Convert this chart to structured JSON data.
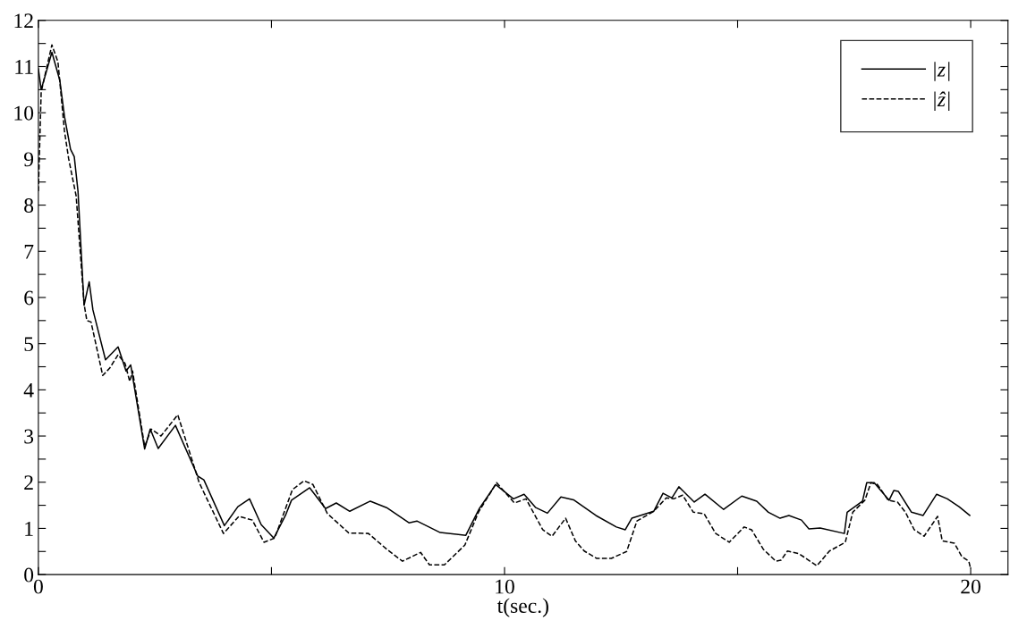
{
  "chart_data": {
    "type": "line",
    "xlabel": "t(sec.)",
    "xlim": [
      0,
      20.8
    ],
    "xticks": [
      0,
      {
        "value": 5,
        "label": null
      },
      10,
      {
        "value": 15,
        "label": null
      },
      20
    ],
    "ylim": [
      0,
      12
    ],
    "yticks": [
      0,
      {
        "value": 0.5,
        "label": null
      },
      1,
      {
        "value": 1.5,
        "label": null
      },
      2,
      {
        "value": 2.5,
        "label": null
      },
      3,
      {
        "value": 3.5,
        "label": null
      },
      4,
      {
        "value": 4.5,
        "label": null
      },
      5,
      {
        "value": 5.5,
        "label": null
      },
      6,
      {
        "value": 6.5,
        "label": null
      },
      7,
      {
        "value": 7.5,
        "label": null
      },
      8,
      {
        "value": 8.5,
        "label": null
      },
      9,
      {
        "value": 9.5,
        "label": null
      },
      10,
      {
        "value": 10.5,
        "label": null
      },
      11,
      {
        "value": 11.5,
        "label": null
      },
      12
    ],
    "grid": false,
    "legend": "top right",
    "marker": "none",
    "series": [
      {
        "name": "|z|",
        "color": "#000000",
        "line_style": "solid",
        "x": [
          0,
          0.06,
          0.29,
          0.46,
          0.56,
          0.69,
          0.77,
          0.85,
          0.98,
          1.09,
          1.17,
          1.44,
          1.71,
          1.88,
          1.98,
          2.28,
          2.4,
          2.57,
          2.94,
          3.42,
          3.55,
          3.99,
          4.28,
          4.53,
          4.78,
          5.05,
          5.3,
          5.43,
          5.82,
          6.16,
          6.39,
          6.68,
          7.12,
          7.47,
          7.95,
          8.12,
          8.62,
          9.17,
          9.46,
          9.81,
          10.19,
          10.42,
          10.67,
          10.92,
          11.21,
          11.48,
          11.96,
          12.4,
          12.59,
          12.73,
          13.2,
          13.4,
          13.59,
          13.74,
          14.07,
          14.3,
          14.7,
          15.09,
          15.41,
          15.66,
          15.91,
          16.1,
          16.37,
          16.53,
          16.77,
          17.29,
          17.35,
          17.68,
          17.77,
          17.93,
          18.25,
          18.35,
          18.45,
          18.73,
          18.98,
          19.27,
          19.5,
          19.75,
          19.98
        ],
        "values": [
          10.95,
          10.5,
          11.31,
          10.7,
          9.92,
          9.21,
          9.05,
          8.3,
          5.83,
          6.34,
          5.73,
          4.65,
          4.93,
          4.41,
          4.54,
          2.72,
          3.15,
          2.73,
          3.23,
          2.13,
          2.05,
          1.06,
          1.47,
          1.64,
          1.08,
          0.79,
          1.28,
          1.61,
          1.88,
          1.43,
          1.55,
          1.37,
          1.59,
          1.45,
          1.12,
          1.16,
          0.91,
          0.85,
          1.43,
          1.95,
          1.64,
          1.74,
          1.45,
          1.33,
          1.68,
          1.62,
          1.28,
          1.03,
          0.97,
          1.22,
          1.37,
          1.76,
          1.66,
          1.9,
          1.57,
          1.74,
          1.41,
          1.7,
          1.59,
          1.35,
          1.22,
          1.28,
          1.18,
          0.99,
          1.01,
          0.89,
          1.35,
          1.59,
          1.99,
          1.99,
          1.61,
          1.82,
          1.8,
          1.35,
          1.28,
          1.74,
          1.64,
          1.47,
          1.28
        ]
      },
      {
        "name": "|ẑ|",
        "color": "#000000",
        "line_style": "dashed",
        "x": [
          0,
          0.06,
          0.29,
          0.42,
          0.56,
          0.65,
          0.81,
          0.98,
          1.04,
          1.13,
          1.38,
          1.53,
          1.71,
          1.86,
          1.96,
          2.02,
          2.28,
          2.42,
          2.63,
          2.99,
          3.45,
          3.97,
          4.3,
          4.59,
          4.84,
          5.07,
          5.45,
          5.7,
          5.89,
          6.2,
          6.66,
          7.08,
          7.47,
          7.81,
          8.2,
          8.39,
          8.71,
          9.15,
          9.44,
          9.83,
          10.21,
          10.46,
          10.82,
          11.02,
          11.31,
          11.52,
          11.71,
          11.98,
          12.29,
          12.62,
          12.84,
          13.2,
          13.47,
          13.63,
          13.82,
          14.05,
          14.28,
          14.53,
          14.82,
          15.14,
          15.3,
          15.55,
          15.82,
          15.93,
          16.07,
          16.32,
          16.7,
          16.97,
          17.31,
          17.47,
          17.73,
          17.86,
          18.0,
          18.23,
          18.43,
          18.6,
          18.79,
          19.0,
          19.29,
          19.39,
          19.65,
          19.81,
          19.96,
          20.0
        ],
        "values": [
          8.3,
          10.45,
          11.47,
          11.1,
          9.6,
          9.0,
          8.2,
          5.86,
          5.5,
          5.47,
          4.31,
          4.47,
          4.76,
          4.57,
          4.18,
          4.41,
          2.77,
          3.15,
          3.0,
          3.46,
          1.99,
          0.89,
          1.26,
          1.18,
          0.7,
          0.79,
          1.84,
          2.03,
          1.95,
          1.32,
          0.9,
          0.89,
          0.55,
          0.29,
          0.48,
          0.21,
          0.21,
          0.64,
          1.35,
          1.99,
          1.55,
          1.64,
          0.97,
          0.83,
          1.22,
          0.73,
          0.51,
          0.35,
          0.35,
          0.5,
          1.16,
          1.37,
          1.66,
          1.64,
          1.72,
          1.35,
          1.32,
          0.89,
          0.7,
          1.03,
          0.97,
          0.55,
          0.29,
          0.31,
          0.51,
          0.45,
          0.19,
          0.51,
          0.7,
          1.35,
          1.61,
          1.99,
          1.95,
          1.61,
          1.57,
          1.35,
          0.97,
          0.83,
          1.26,
          0.73,
          0.68,
          0.39,
          0.29,
          0.12
        ]
      }
    ]
  }
}
